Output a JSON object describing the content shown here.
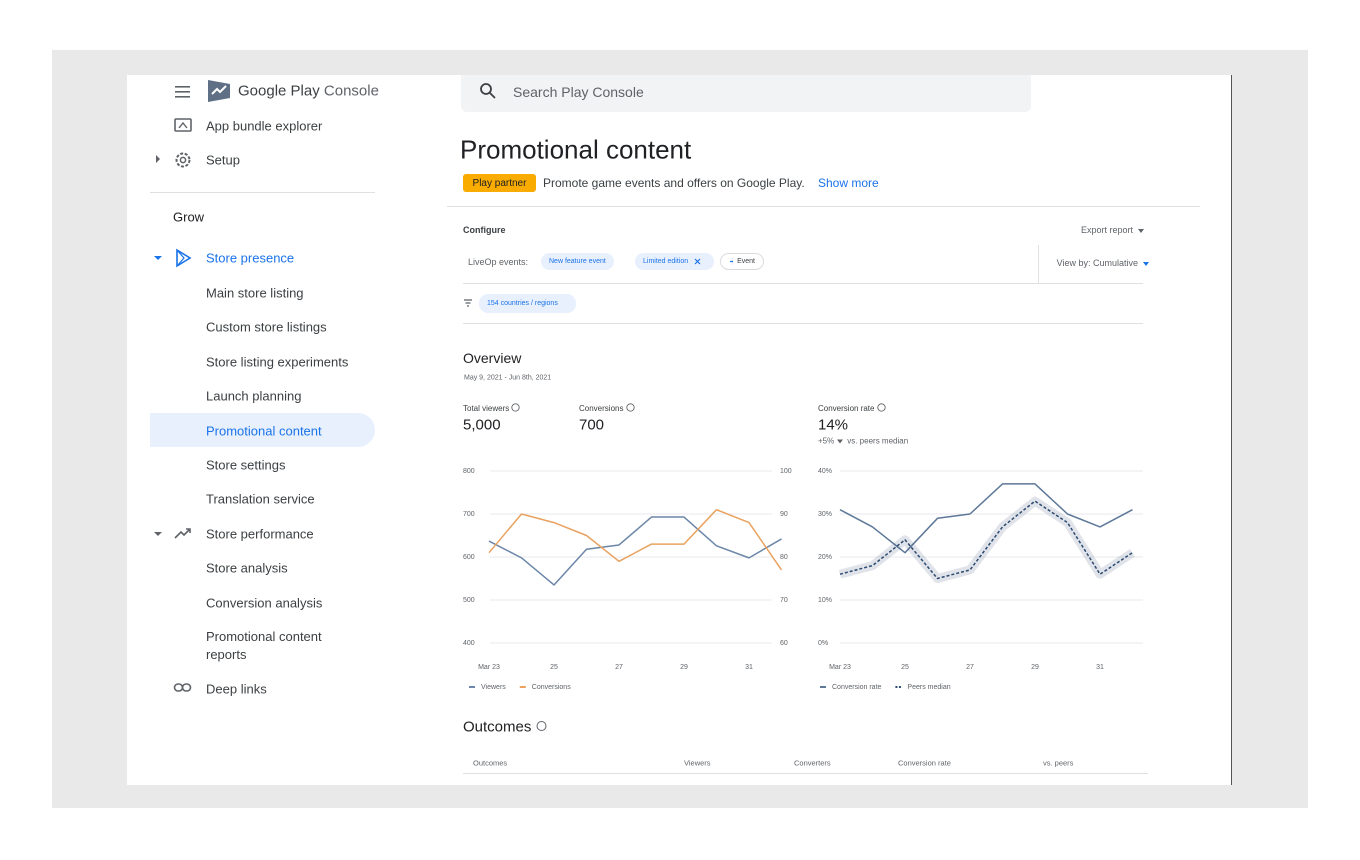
{
  "sidebar": {
    "brand": {
      "name": "Google Play",
      "product": "Console"
    },
    "nav": [
      "App bundle explorer",
      "Setup",
      "Grow",
      "Store presence",
      "Main store listing",
      "Custom store listings",
      "Store listing experiments",
      "Launch planning",
      "Promotional content",
      "Store settings",
      "Translation service",
      "Store performance",
      "Store analysis",
      "Conversion analysis",
      "Promotional content reports",
      "Deep links"
    ]
  },
  "search": {
    "placeholder": "Search Play Console"
  },
  "header": {
    "title": "Promotional content",
    "badge": "Play partner",
    "description": "Promote game events and offers on Google Play.",
    "link": "Show more"
  },
  "configure": {
    "title": "Configure",
    "export": "Export report",
    "events_label": "LiveOp events:",
    "chips": [
      "New feature event",
      "Limited edition"
    ],
    "add_event": "Event",
    "view_by": "View by: Cumulative",
    "filter": "154 countries / regions"
  },
  "overview": {
    "title": "Overview",
    "date_range": "May 9, 2021 - Jun 8th, 2021",
    "stats": [
      {
        "label": "Total viewers",
        "value": "5,000"
      },
      {
        "label": "Conversions",
        "value": "700"
      },
      {
        "label": "Conversion rate",
        "value": "14%"
      }
    ],
    "delta": "+5%",
    "delta_note": "vs. peers median"
  },
  "chart_data": [
    {
      "type": "line",
      "categories": [
        "Mar 23",
        null,
        "25",
        null,
        "27",
        null,
        "29",
        null,
        "31",
        null
      ],
      "series": [
        {
          "name": "Viewers",
          "color": "#6b86a8",
          "values": [
            637,
            598,
            535,
            618,
            628,
            693,
            693,
            626,
            598,
            642
          ]
        },
        {
          "name": "Conversions",
          "color": "#e9a25f",
          "axis": "y2",
          "values": [
            81,
            90,
            88,
            85,
            79,
            83,
            83,
            91,
            88,
            77
          ]
        }
      ],
      "ylim": [
        400,
        800
      ],
      "yticks": [
        400,
        500,
        600,
        700,
        800
      ],
      "y2lim": [
        60,
        100
      ],
      "y2ticks": [
        60,
        70,
        80,
        90,
        100
      ],
      "grid": true
    },
    {
      "type": "line",
      "categories": [
        "Mar 23",
        null,
        "25",
        null,
        "27",
        null,
        "29",
        null,
        "31",
        null
      ],
      "series": [
        {
          "name": "Conversion rate",
          "color": "#5d7898",
          "values": [
            31,
            27,
            21,
            29,
            30,
            37,
            37,
            30,
            27,
            31
          ]
        },
        {
          "name": "Peers median",
          "color": "#2d4a70",
          "dashed": true,
          "confidence_band": true,
          "values": [
            16,
            18,
            24,
            15,
            17,
            27,
            33,
            28,
            16,
            21
          ]
        }
      ],
      "ylim": [
        0,
        40
      ],
      "yticks": [
        {
          "value": 0,
          "label": "0%"
        },
        {
          "value": 10,
          "label": "10%"
        },
        {
          "value": 20,
          "label": "20%"
        },
        {
          "value": 30,
          "label": "30%"
        },
        {
          "value": 40,
          "label": "40%"
        }
      ],
      "grid": true
    }
  ],
  "outcomes": {
    "title": "Outcomes",
    "columns": [
      "Outcomes",
      "Viewers",
      "Converters",
      "Conversion rate",
      "vs. peers"
    ]
  }
}
